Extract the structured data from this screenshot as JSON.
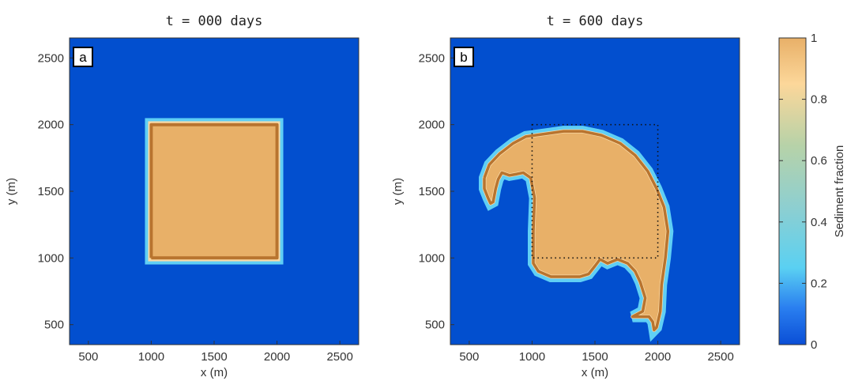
{
  "chart_data": [
    {
      "type": "heatmap",
      "panel_label": "a",
      "title": "t = 000 days",
      "xlabel": "x (m)",
      "ylabel": "y (m)",
      "xlim": [
        350,
        2650
      ],
      "ylim": [
        350,
        2650
      ],
      "xticks": [
        500,
        1000,
        1500,
        2000,
        2500
      ],
      "yticks": [
        500,
        1000,
        1500,
        2000,
        2500
      ],
      "background_value": 0,
      "sediment_region": {
        "x": [
          975,
          2025
        ],
        "y": [
          975,
          2025
        ],
        "value": 1
      },
      "contour": [
        [
          1000,
          1000
        ],
        [
          2000,
          1000
        ],
        [
          2000,
          2000
        ],
        [
          1000,
          2000
        ],
        [
          1000,
          1000
        ]
      ]
    },
    {
      "type": "heatmap",
      "panel_label": "b",
      "title": "t = 600 days",
      "xlabel": "x (m)",
      "ylabel": "y (m)",
      "xlim": [
        350,
        2650
      ],
      "ylim": [
        350,
        2650
      ],
      "xticks": [
        500,
        1000,
        1500,
        2000,
        2500
      ],
      "yticks": [
        500,
        1000,
        1500,
        2000,
        2500
      ],
      "background_value": 0,
      "initial_extent": {
        "x": [
          1000,
          2000
        ],
        "y": [
          1000,
          2000
        ]
      },
      "contour": [
        [
          620,
          1600
        ],
        [
          660,
          1700
        ],
        [
          740,
          1780
        ],
        [
          850,
          1860
        ],
        [
          950,
          1910
        ],
        [
          1100,
          1930
        ],
        [
          1250,
          1950
        ],
        [
          1400,
          1950
        ],
        [
          1550,
          1920
        ],
        [
          1700,
          1860
        ],
        [
          1820,
          1770
        ],
        [
          1920,
          1650
        ],
        [
          1990,
          1520
        ],
        [
          2050,
          1380
        ],
        [
          2080,
          1200
        ],
        [
          2060,
          1000
        ],
        [
          2030,
          800
        ],
        [
          2020,
          600
        ],
        [
          1990,
          480
        ],
        [
          1970,
          460
        ],
        [
          1960,
          520
        ],
        [
          1930,
          560
        ],
        [
          1800,
          560
        ],
        [
          1880,
          600
        ],
        [
          1900,
          700
        ],
        [
          1860,
          820
        ],
        [
          1820,
          900
        ],
        [
          1760,
          960
        ],
        [
          1680,
          990
        ],
        [
          1600,
          960
        ],
        [
          1540,
          990
        ],
        [
          1500,
          940
        ],
        [
          1450,
          880
        ],
        [
          1380,
          860
        ],
        [
          1250,
          860
        ],
        [
          1150,
          860
        ],
        [
          1050,
          900
        ],
        [
          1010,
          960
        ],
        [
          1010,
          1200
        ],
        [
          1020,
          1450
        ],
        [
          990,
          1600
        ],
        [
          930,
          1640
        ],
        [
          880,
          1630
        ],
        [
          820,
          1620
        ],
        [
          760,
          1640
        ],
        [
          730,
          1590
        ],
        [
          710,
          1520
        ],
        [
          690,
          1420
        ],
        [
          670,
          1410
        ],
        [
          650,
          1450
        ],
        [
          620,
          1520
        ],
        [
          620,
          1600
        ]
      ]
    }
  ],
  "colorbar": {
    "label": "Sediment fraction",
    "range": [
      0,
      1
    ],
    "ticks": [
      "0",
      "0.2",
      "0.4",
      "0.6",
      "0.8",
      "1"
    ],
    "tick_values": [
      0,
      0.2,
      0.4,
      0.6,
      0.8,
      1
    ],
    "stops": [
      {
        "v": 0,
        "color": "#0a4ed6"
      },
      {
        "v": 0.12,
        "color": "#2a7ff0"
      },
      {
        "v": 0.25,
        "color": "#5ad0f2"
      },
      {
        "v": 0.45,
        "color": "#8ecfd0"
      },
      {
        "v": 0.65,
        "color": "#b7d2a8"
      },
      {
        "v": 0.85,
        "color": "#fcd79a"
      },
      {
        "v": 1,
        "color": "#e8b068"
      }
    ]
  },
  "colors": {
    "background": "#024fcf",
    "sediment": "#e8b068",
    "contour": "#b8742f",
    "edge_light": "#5fcff5",
    "edge_pale": "#f9d9a6"
  }
}
